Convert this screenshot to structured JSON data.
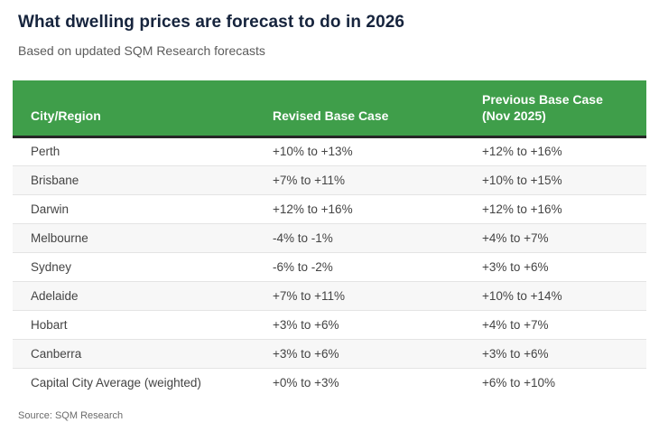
{
  "page": {
    "title": "What dwelling prices are forecast to do in 2026",
    "subtitle": "Based on updated SQM Research forecasts"
  },
  "chart_data": {
    "type": "table",
    "title": "What dwelling prices are forecast to do in 2026",
    "subtitle": "Based on updated SQM Research forecasts",
    "columns": [
      "City/Region",
      "Revised Base Case",
      "Previous Base Case (Nov 2025)"
    ],
    "rows": [
      {
        "city": "Perth",
        "revised": "+10% to +13%",
        "previous": "+12% to +16%"
      },
      {
        "city": "Brisbane",
        "revised": "+7% to +11%",
        "previous": "+10% to +15%"
      },
      {
        "city": "Darwin",
        "revised": "+12% to +16%",
        "previous": "+12% to +16%"
      },
      {
        "city": "Melbourne",
        "revised": "-4% to -1%",
        "previous": "+4% to +7%"
      },
      {
        "city": "Sydney",
        "revised": "-6% to -2%",
        "previous": "+3% to +6%"
      },
      {
        "city": "Adelaide",
        "revised": "+7% to +11%",
        "previous": "+10% to +14%"
      },
      {
        "city": "Hobart",
        "revised": "+3% to +6%",
        "previous": "+4% to +7%"
      },
      {
        "city": "Canberra",
        "revised": "+3% to +6%",
        "previous": "+3% to +6%"
      },
      {
        "city": "Capital City Average (weighted)",
        "revised": "+0% to +3%",
        "previous": "+6% to +10%"
      }
    ],
    "source": "Source: SQM Research",
    "layout_hints": {
      "header_background": "#3f9e4a",
      "header_text_color": "#ffffff",
      "header_bottom_border": "#262626",
      "row_stripe_color": "#f7f7f7",
      "row_separator_color": "#e4e4e4",
      "body_text_color": "#444444",
      "title_color": "#16243d",
      "subtitle_color": "#5b5b5b",
      "grid": "horizontal-only",
      "stripes": "even-rows-gray"
    }
  },
  "footer": {
    "source_label": "Source: SQM Research"
  }
}
